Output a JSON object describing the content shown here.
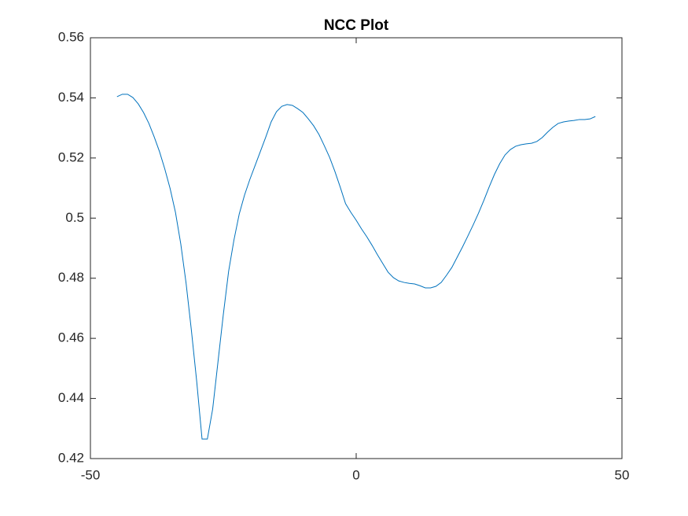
{
  "chart_data": {
    "type": "line",
    "title": "NCC Plot",
    "x": [
      -45,
      -44,
      -43,
      -42,
      -41,
      -40,
      -39,
      -38,
      -37,
      -36,
      -35,
      -34,
      -33,
      -32,
      -31,
      -30,
      -29,
      -28,
      -27,
      -26,
      -25,
      -24,
      -23,
      -22,
      -21,
      -20,
      -19,
      -18,
      -17,
      -16,
      -15,
      -14,
      -13,
      -12,
      -11,
      -10,
      -9,
      -8,
      -7,
      -6,
      -5,
      -4,
      -3,
      -2,
      -1,
      0,
      1,
      2,
      3,
      4,
      5,
      6,
      7,
      8,
      9,
      10,
      11,
      12,
      13,
      14,
      15,
      16,
      17,
      18,
      19,
      20,
      21,
      22,
      23,
      24,
      25,
      26,
      27,
      28,
      29,
      30,
      31,
      32,
      33,
      34,
      35,
      36,
      37,
      38,
      39,
      40,
      41,
      42,
      43,
      44,
      45
    ],
    "series": [
      {
        "color": "#0072bd",
        "values": [
          0.5404,
          0.5412,
          0.5412,
          0.5401,
          0.538,
          0.5351,
          0.5315,
          0.527,
          0.5221,
          0.5163,
          0.5098,
          0.5019,
          0.4914,
          0.4783,
          0.4626,
          0.4456,
          0.4265,
          0.4265,
          0.4365,
          0.4522,
          0.4679,
          0.4823,
          0.4927,
          0.5014,
          0.5077,
          0.5129,
          0.5176,
          0.5223,
          0.527,
          0.532,
          0.5354,
          0.5372,
          0.5378,
          0.5375,
          0.5364,
          0.5351,
          0.533,
          0.5307,
          0.5278,
          0.5241,
          0.5202,
          0.5155,
          0.5103,
          0.5048,
          0.5019,
          0.4993,
          0.4964,
          0.4938,
          0.4909,
          0.4878,
          0.4849,
          0.482,
          0.4802,
          0.4791,
          0.4786,
          0.4783,
          0.4781,
          0.4775,
          0.4768,
          0.4768,
          0.4773,
          0.4786,
          0.481,
          0.4836,
          0.487,
          0.4904,
          0.494,
          0.4977,
          0.5016,
          0.5058,
          0.5103,
          0.5145,
          0.5181,
          0.521,
          0.5228,
          0.5239,
          0.5244,
          0.5247,
          0.5249,
          0.5255,
          0.5268,
          0.5286,
          0.5302,
          0.5315,
          0.532,
          0.5323,
          0.5325,
          0.5328,
          0.5328,
          0.533,
          0.5338
        ]
      }
    ],
    "xlim": [
      -50,
      50
    ],
    "xticks": [
      -50,
      0,
      50
    ],
    "ylim": [
      0.42,
      0.56
    ],
    "yticks": [
      0.42,
      0.44,
      0.46,
      0.48,
      0.5,
      0.52,
      0.54,
      0.56
    ],
    "grid": false
  }
}
